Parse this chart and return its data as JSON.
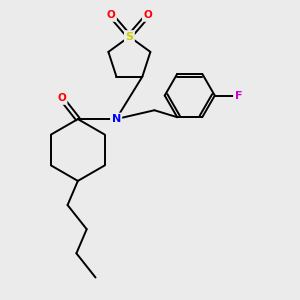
{
  "background_color": "#ebebeb",
  "bond_color": "#000000",
  "bond_width": 1.4,
  "atom_colors": {
    "S": "#cccc00",
    "N": "#0000ff",
    "O": "#ff0000",
    "F": "#cc00cc",
    "C": "#000000"
  },
  "figsize": [
    3.0,
    3.0
  ],
  "dpi": 100
}
